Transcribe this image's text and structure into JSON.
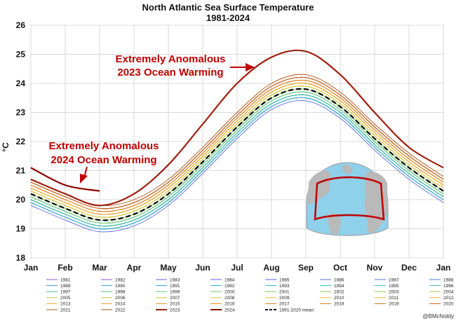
{
  "chart_data": {
    "type": "line",
    "title": "North Atlantic Sea Surface Temperature",
    "subtitle": "1981-2024",
    "xlabel": "",
    "ylabel": "°C",
    "ylim": [
      18,
      26
    ],
    "yticks": [
      18,
      19,
      20,
      21,
      22,
      23,
      24,
      25,
      26
    ],
    "xticks": [
      "Jan",
      "Feb",
      "Mar",
      "Apr",
      "May",
      "Jun",
      "Jul",
      "Aug",
      "Sep",
      "Oct",
      "Nov",
      "Dec",
      "Jan"
    ],
    "grid": true,
    "legend_position": "bottom",
    "x": [
      "Jan",
      "Feb",
      "Mar",
      "Apr",
      "May",
      "Jun",
      "Jul",
      "Aug",
      "Sep",
      "Oct",
      "Nov",
      "Dec",
      "Jan"
    ],
    "series": [
      {
        "name": "1981",
        "color": "#8e5bd6",
        "values": [
          20.0,
          19.5,
          19.1,
          19.3,
          20.0,
          21.1,
          22.3,
          23.3,
          23.6,
          23.0,
          21.9,
          20.9,
          20.1
        ]
      },
      {
        "name": "1982",
        "color": "#9a4fd0",
        "values": [
          19.9,
          19.4,
          19.0,
          19.2,
          19.9,
          21.0,
          22.2,
          23.2,
          23.5,
          22.9,
          21.8,
          20.8,
          20.0
        ]
      },
      {
        "name": "1983",
        "color": "#7d55d8",
        "values": [
          20.0,
          19.5,
          19.1,
          19.3,
          20.0,
          21.1,
          22.3,
          23.3,
          23.6,
          23.0,
          21.9,
          20.9,
          20.1
        ]
      },
      {
        "name": "1984",
        "color": "#6a5fdc",
        "values": [
          19.9,
          19.4,
          19.0,
          19.2,
          19.9,
          21.0,
          22.2,
          23.2,
          23.5,
          22.9,
          21.8,
          20.8,
          20.0
        ]
      },
      {
        "name": "1985",
        "color": "#5a66de",
        "values": [
          19.8,
          19.3,
          18.9,
          19.1,
          19.8,
          20.9,
          22.1,
          23.1,
          23.4,
          22.8,
          21.7,
          20.7,
          19.9
        ]
      },
      {
        "name": "1986",
        "color": "#4e70e0",
        "values": [
          19.9,
          19.4,
          19.0,
          19.2,
          19.9,
          21.0,
          22.2,
          23.2,
          23.5,
          22.9,
          21.8,
          20.8,
          20.0
        ]
      },
      {
        "name": "1987",
        "color": "#4a78e2",
        "values": [
          20.0,
          19.5,
          19.1,
          19.3,
          20.0,
          21.1,
          22.3,
          23.3,
          23.6,
          23.0,
          21.9,
          20.9,
          20.1
        ]
      },
      {
        "name": "1988",
        "color": "#4682e2",
        "values": [
          20.0,
          19.5,
          19.1,
          19.3,
          20.0,
          21.1,
          22.3,
          23.3,
          23.6,
          23.0,
          21.9,
          20.9,
          20.1
        ]
      },
      {
        "name": "1989",
        "color": "#3f8ee0",
        "values": [
          19.9,
          19.4,
          19.0,
          19.2,
          19.9,
          21.0,
          22.2,
          23.2,
          23.5,
          22.9,
          21.8,
          20.8,
          20.0
        ]
      },
      {
        "name": "1990",
        "color": "#3899dc",
        "values": [
          20.1,
          19.6,
          19.2,
          19.4,
          20.1,
          21.2,
          22.4,
          23.4,
          23.7,
          23.1,
          22.0,
          21.0,
          20.2
        ]
      },
      {
        "name": "1991",
        "color": "#34a3d6",
        "values": [
          20.0,
          19.5,
          19.1,
          19.3,
          20.0,
          21.1,
          22.3,
          23.3,
          23.6,
          23.0,
          21.9,
          20.9,
          20.1
        ]
      },
      {
        "name": "1992",
        "color": "#30abce",
        "values": [
          19.9,
          19.4,
          19.0,
          19.2,
          19.9,
          21.0,
          22.2,
          23.2,
          23.5,
          22.9,
          21.8,
          20.8,
          20.0
        ]
      },
      {
        "name": "1993",
        "color": "#2eb3c4",
        "values": [
          19.9,
          19.4,
          19.0,
          19.2,
          19.9,
          21.0,
          22.2,
          23.2,
          23.5,
          22.9,
          21.8,
          20.8,
          20.0
        ]
      },
      {
        "name": "1994",
        "color": "#2fb9b8",
        "values": [
          20.0,
          19.5,
          19.1,
          19.3,
          20.0,
          21.1,
          22.3,
          23.3,
          23.6,
          23.0,
          21.9,
          20.9,
          20.1
        ]
      },
      {
        "name": "1995",
        "color": "#34beaa",
        "values": [
          20.1,
          19.6,
          19.2,
          19.4,
          20.1,
          21.2,
          22.4,
          23.4,
          23.7,
          23.1,
          22.0,
          21.0,
          20.2
        ]
      },
      {
        "name": "1996",
        "color": "#3cc29c",
        "values": [
          20.0,
          19.5,
          19.1,
          19.3,
          20.0,
          21.1,
          22.3,
          23.3,
          23.6,
          23.0,
          21.9,
          20.9,
          20.1
        ]
      },
      {
        "name": "1997",
        "color": "#46c58e",
        "values": [
          20.1,
          19.6,
          19.2,
          19.4,
          20.1,
          21.2,
          22.4,
          23.4,
          23.7,
          23.1,
          22.0,
          21.0,
          20.2
        ]
      },
      {
        "name": "1998",
        "color": "#52c780",
        "values": [
          20.3,
          19.8,
          19.4,
          19.6,
          20.3,
          21.4,
          22.6,
          23.6,
          23.9,
          23.3,
          22.2,
          21.2,
          20.4
        ]
      },
      {
        "name": "1999",
        "color": "#5ec874",
        "values": [
          20.2,
          19.7,
          19.3,
          19.5,
          20.2,
          21.3,
          22.5,
          23.5,
          23.8,
          23.2,
          22.1,
          21.1,
          20.3
        ]
      },
      {
        "name": "2000",
        "color": "#6cc968",
        "values": [
          20.1,
          19.6,
          19.2,
          19.4,
          20.1,
          21.2,
          22.4,
          23.4,
          23.7,
          23.1,
          22.0,
          21.0,
          20.2
        ]
      },
      {
        "name": "2001",
        "color": "#7aca5e",
        "values": [
          20.2,
          19.7,
          19.3,
          19.5,
          20.2,
          21.3,
          22.5,
          23.5,
          23.8,
          23.2,
          22.1,
          21.1,
          20.3
        ]
      },
      {
        "name": "2002",
        "color": "#88cb54",
        "values": [
          20.2,
          19.7,
          19.3,
          19.5,
          20.2,
          21.3,
          22.5,
          23.5,
          23.8,
          23.2,
          22.1,
          21.1,
          20.3
        ]
      },
      {
        "name": "2003",
        "color": "#96cc4c",
        "values": [
          20.3,
          19.8,
          19.4,
          19.6,
          20.3,
          21.4,
          22.6,
          23.6,
          23.9,
          23.3,
          22.2,
          21.2,
          20.4
        ]
      },
      {
        "name": "2004",
        "color": "#a4cc44",
        "values": [
          20.3,
          19.8,
          19.4,
          19.6,
          20.3,
          21.4,
          22.6,
          23.6,
          23.9,
          23.3,
          22.2,
          21.2,
          20.4
        ]
      },
      {
        "name": "2005",
        "color": "#b2cc3e",
        "values": [
          20.4,
          19.9,
          19.5,
          19.7,
          20.4,
          21.5,
          22.7,
          23.7,
          24.0,
          23.4,
          22.3,
          21.3,
          20.5
        ]
      },
      {
        "name": "2006",
        "color": "#bfcb38",
        "values": [
          20.4,
          19.9,
          19.5,
          19.7,
          20.4,
          21.5,
          22.7,
          23.7,
          24.0,
          23.4,
          22.3,
          21.3,
          20.5
        ]
      },
      {
        "name": "2007",
        "color": "#cbc934",
        "values": [
          20.3,
          19.8,
          19.4,
          19.6,
          20.3,
          21.4,
          22.6,
          23.6,
          23.9,
          23.3,
          22.2,
          21.2,
          20.4
        ]
      },
      {
        "name": "2008",
        "color": "#d6c632",
        "values": [
          20.4,
          19.9,
          19.5,
          19.7,
          20.4,
          21.5,
          22.7,
          23.7,
          24.0,
          23.4,
          22.3,
          21.3,
          20.5
        ]
      },
      {
        "name": "2009",
        "color": "#dfc230",
        "values": [
          20.3,
          19.8,
          19.4,
          19.6,
          20.3,
          21.4,
          22.6,
          23.6,
          23.9,
          23.3,
          22.2,
          21.2,
          20.4
        ]
      },
      {
        "name": "2010",
        "color": "#e6bd2e",
        "values": [
          20.5,
          20.0,
          19.6,
          19.8,
          20.5,
          21.6,
          22.8,
          23.8,
          24.1,
          23.5,
          22.4,
          21.4,
          20.6
        ]
      },
      {
        "name": "2011",
        "color": "#ebb72c",
        "values": [
          20.4,
          19.9,
          19.5,
          19.7,
          20.4,
          21.5,
          22.7,
          23.7,
          24.0,
          23.4,
          22.3,
          21.3,
          20.5
        ]
      },
      {
        "name": "2012",
        "color": "#eeb02a",
        "values": [
          20.5,
          20.0,
          19.6,
          19.8,
          20.5,
          21.6,
          22.8,
          23.8,
          24.1,
          23.5,
          22.4,
          21.4,
          20.6
        ]
      },
      {
        "name": "2013",
        "color": "#efa828",
        "values": [
          20.4,
          19.9,
          19.5,
          19.7,
          20.4,
          21.5,
          22.7,
          23.7,
          24.0,
          23.4,
          22.3,
          21.3,
          20.5
        ]
      },
      {
        "name": "2014",
        "color": "#ee9f26",
        "values": [
          20.4,
          19.9,
          19.5,
          19.7,
          20.4,
          21.5,
          22.7,
          23.7,
          24.0,
          23.4,
          22.3,
          21.3,
          20.5
        ]
      },
      {
        "name": "2015",
        "color": "#eb9524",
        "values": [
          20.5,
          20.0,
          19.6,
          19.8,
          20.5,
          21.6,
          22.8,
          23.8,
          24.1,
          23.5,
          22.4,
          21.4,
          20.6
        ]
      },
      {
        "name": "2016",
        "color": "#e68b22",
        "values": [
          20.6,
          20.1,
          19.7,
          19.9,
          20.6,
          21.7,
          22.9,
          23.9,
          24.2,
          23.6,
          22.5,
          21.5,
          20.7
        ]
      },
      {
        "name": "2017",
        "color": "#df8120",
        "values": [
          20.6,
          20.1,
          19.7,
          19.9,
          20.6,
          21.7,
          22.9,
          23.9,
          24.2,
          23.6,
          22.5,
          21.5,
          20.7
        ]
      },
      {
        "name": "2018",
        "color": "#d7771e",
        "values": [
          20.5,
          20.0,
          19.6,
          19.8,
          20.5,
          21.6,
          22.8,
          23.8,
          24.1,
          23.5,
          22.4,
          21.4,
          20.6
        ]
      },
      {
        "name": "2019",
        "color": "#ce6d1c",
        "values": [
          20.6,
          20.1,
          19.7,
          19.9,
          20.6,
          21.7,
          22.9,
          23.9,
          24.2,
          23.6,
          22.5,
          21.5,
          20.7
        ]
      },
      {
        "name": "2020",
        "color": "#c4631a",
        "values": [
          20.6,
          20.1,
          19.7,
          19.9,
          20.6,
          21.7,
          22.9,
          23.9,
          24.2,
          23.6,
          22.5,
          21.5,
          20.7
        ]
      },
      {
        "name": "2021",
        "color": "#ba5918",
        "values": [
          20.6,
          20.1,
          19.7,
          19.9,
          20.6,
          21.7,
          22.9,
          23.9,
          24.2,
          23.6,
          22.5,
          21.5,
          20.7
        ]
      },
      {
        "name": "2022",
        "color": "#b04f16",
        "values": [
          20.7,
          20.2,
          19.8,
          20.0,
          20.7,
          21.8,
          23.0,
          24.0,
          24.3,
          23.7,
          22.6,
          21.6,
          20.8
        ]
      },
      {
        "name": "2023",
        "color": "#a02010",
        "values": [
          20.7,
          20.2,
          19.8,
          20.2,
          21.2,
          22.6,
          24.0,
          24.9,
          25.1,
          24.3,
          23.0,
          21.8,
          21.1
        ]
      },
      {
        "name": "2024",
        "color": "#8b0000",
        "values": [
          21.1,
          20.5,
          20.3,
          null,
          null,
          null,
          null,
          null,
          null,
          null,
          null,
          null,
          null
        ]
      },
      {
        "name": "1991-2020 mean",
        "color": "#000000",
        "dashed": true,
        "values": [
          20.2,
          19.7,
          19.3,
          19.5,
          20.2,
          21.3,
          22.5,
          23.5,
          23.8,
          23.2,
          22.1,
          21.1,
          20.3
        ]
      }
    ],
    "annotations": [
      {
        "text_lines": [
          "Extremely Anomalous",
          "2023 Ocean Warming"
        ],
        "target_series": "2023"
      },
      {
        "text_lines": [
          "Extremely Anomalous",
          "2024 Ocean Warming"
        ],
        "target_series": "2024"
      }
    ],
    "credit": "@BMcNoldy"
  }
}
